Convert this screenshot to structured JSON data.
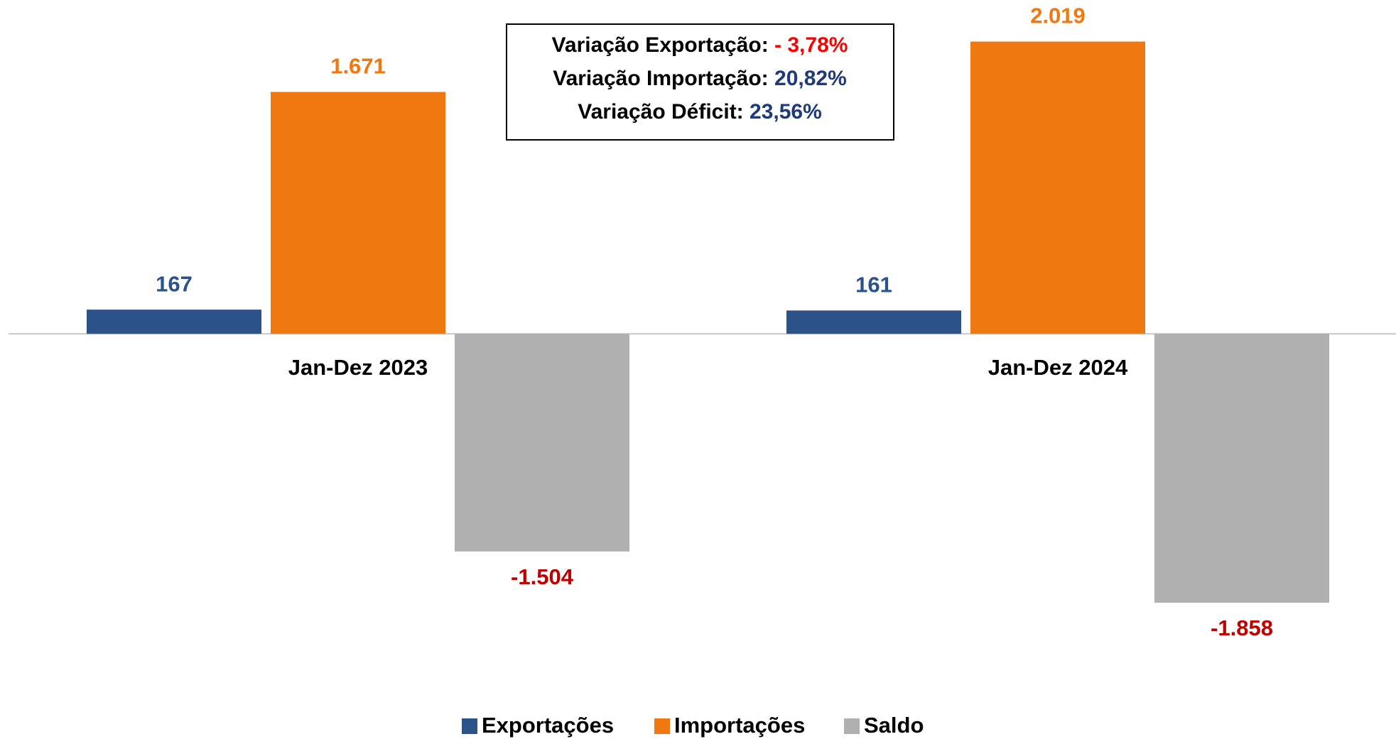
{
  "chart_data": {
    "type": "bar",
    "categories": [
      "Jan-Dez 2023",
      "Jan-Dez 2024"
    ],
    "series": [
      {
        "name": "Exportações",
        "color": "#2b5289",
        "values": [
          167,
          161
        ],
        "value_labels": [
          "167",
          "161"
        ],
        "label_color": "#2b5289"
      },
      {
        "name": "Importações",
        "color": "#f07810",
        "values": [
          1671,
          2019
        ],
        "value_labels": [
          "1.671",
          "2.019"
        ],
        "label_color": "#f07810"
      },
      {
        "name": "Saldo",
        "color": "#b0b0b0",
        "values": [
          -1504,
          -1858
        ],
        "value_labels": [
          "-1.504",
          "-1.858"
        ],
        "label_color": "#c00000"
      }
    ],
    "ylim": [
      -2000,
      2300
    ],
    "annotation": [
      {
        "label": "Variação Exportação:",
        "value": "- 3,78%",
        "color": "#ff0000"
      },
      {
        "label": "Variação Importação:",
        "value": "20,82%",
        "color": "#1f3a7a"
      },
      {
        "label": "Variação Déficit:",
        "value": "23,56%",
        "color": "#1f3a7a"
      }
    ],
    "legend": "bottom"
  }
}
